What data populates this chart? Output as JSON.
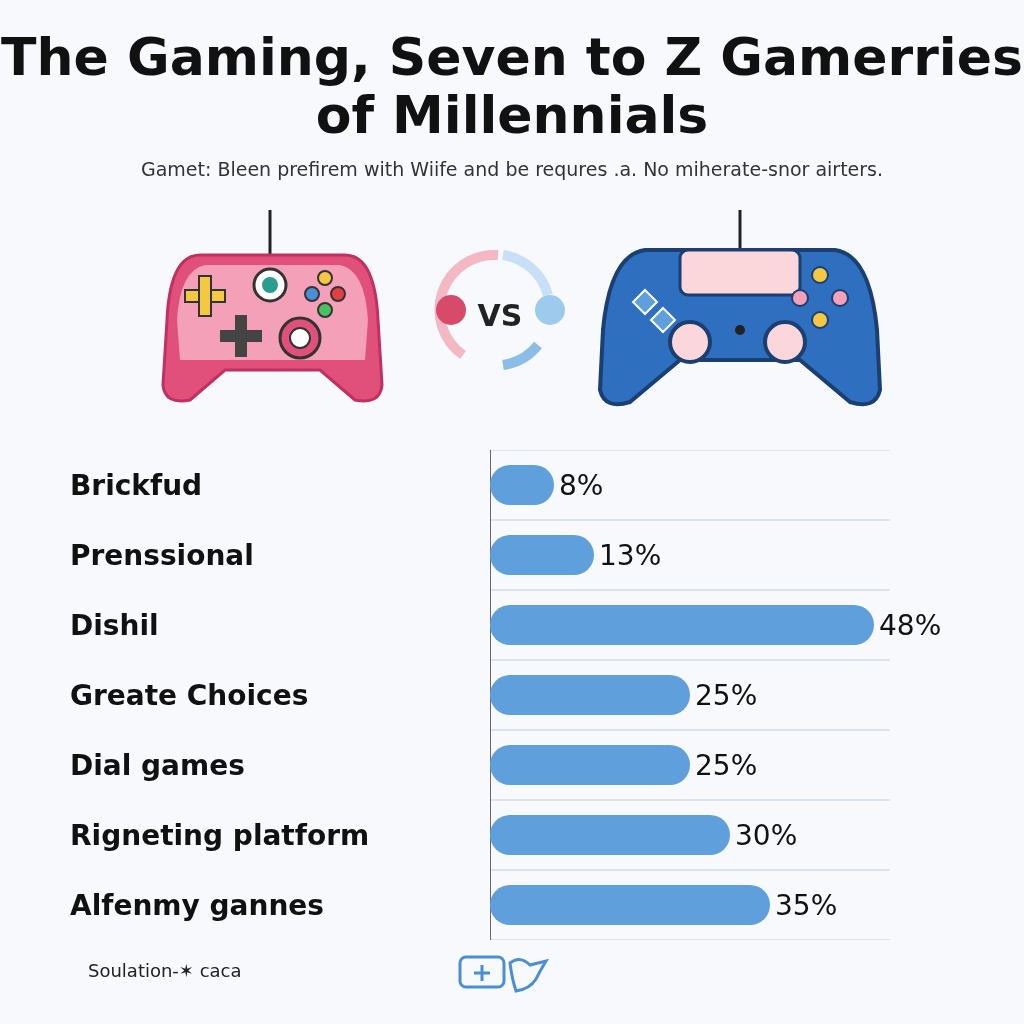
{
  "chart_data": {
    "type": "bar",
    "orientation": "horizontal",
    "title": "The Gaming, Seven to Z Gamerries of Millennials",
    "subtitle": "Gamet: Bleen prefirem with Wiife and be requres .a. No miherate-snor airters.",
    "categories": [
      "Brickfud",
      "Prenssional",
      "Dishil",
      "Greate Choices",
      "Dial games",
      "Rigneting platform",
      "Alfenmy gannes"
    ],
    "values": [
      8,
      13,
      48,
      25,
      25,
      30,
      35
    ],
    "value_labels": [
      "8%",
      "13%",
      "48%",
      "25%",
      "25%",
      "30%",
      "35%"
    ],
    "color": "#5f9fdc",
    "grid": "y",
    "annotations": [
      "VS",
      "Soulation-✶ caca"
    ]
  }
}
